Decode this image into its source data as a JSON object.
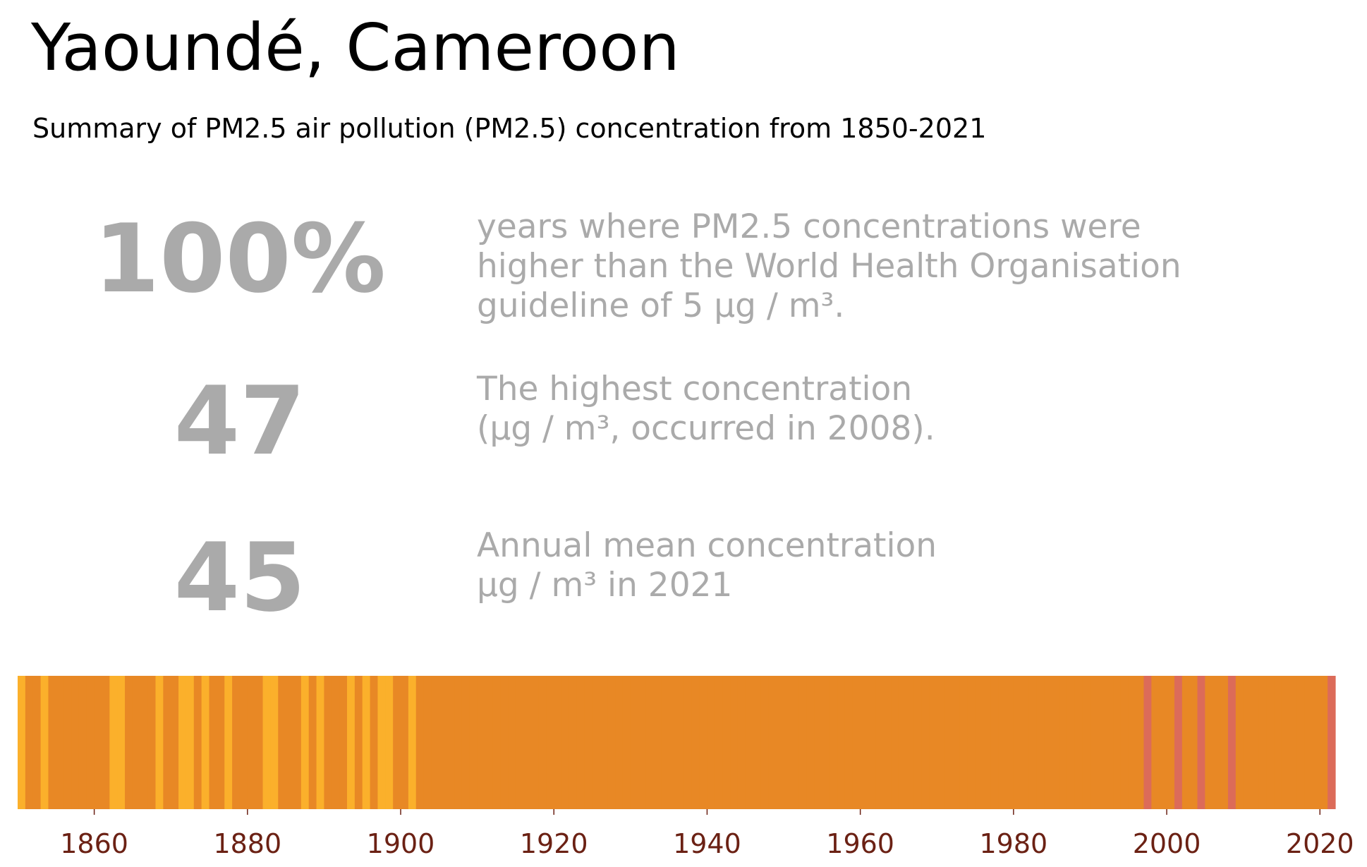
{
  "title": "Yaoundé, Cameroon",
  "subtitle": "Summary of PM2.5 air pollution (PM2.5) concentration from 1850-2021",
  "stats": [
    {
      "value": "100%",
      "lines": [
        "years where PM2.5 concentrations were",
        "higher than the World Health Organisation",
        "guideline of 5 µg / m³."
      ]
    },
    {
      "value": "47",
      "lines": [
        "The highest concentration",
        "(µg / m³, occurred in 2008)."
      ]
    },
    {
      "value": "45",
      "lines": [
        "Annual mean concentration",
        "µg / m³ in 2021"
      ]
    }
  ],
  "colors": {
    "stripe_light": "#fbb02b",
    "stripe_mid": "#e88825",
    "stripe_dark": "#dc6b59",
    "tick_label": "#6b2114",
    "stat_text": "#aaaaaa"
  },
  "chart_data": {
    "type": "heatmap",
    "x_range": [
      1850,
      2022
    ],
    "tick_labels": [
      "1860",
      "1880",
      "1900",
      "1920",
      "1940",
      "1960",
      "1980",
      "2000",
      "2020"
    ],
    "categories": [
      "light",
      "mid",
      "dark"
    ],
    "default_category": "mid",
    "light_years": [
      1850,
      1853,
      1862,
      1863,
      1868,
      1871,
      1872,
      1874,
      1877,
      1882,
      1883,
      1887,
      1889,
      1893,
      1895,
      1897,
      1898,
      1901
    ],
    "dark_years": [
      1997,
      2001,
      2004,
      2008,
      2021
    ]
  }
}
